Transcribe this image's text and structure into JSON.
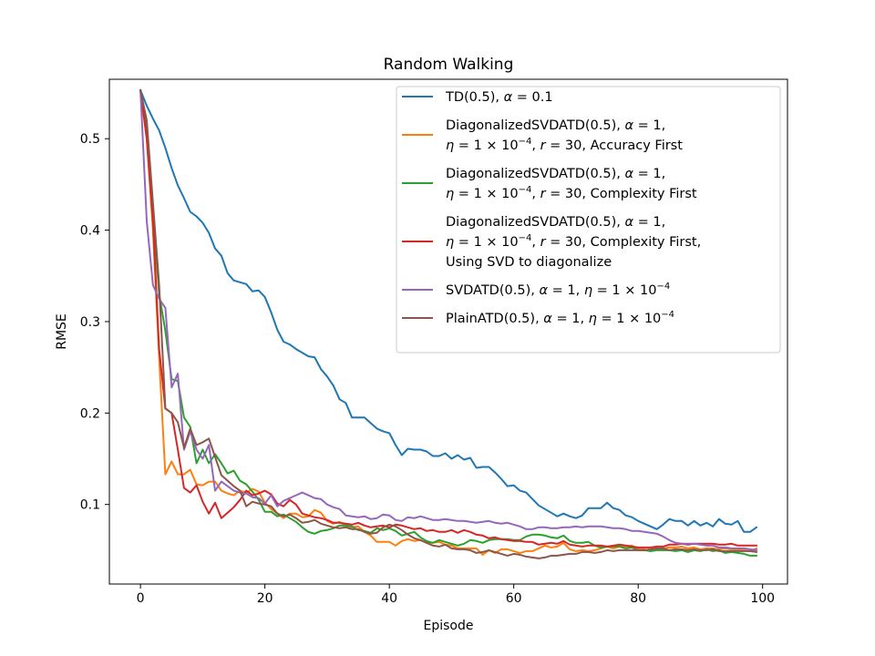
{
  "chart_data": {
    "type": "line",
    "title": "Random Walking",
    "xlabel": "Episode",
    "ylabel": "RMSE",
    "xlim": [
      -5,
      104
    ],
    "ylim": [
      0.013,
      0.565
    ],
    "xticks": [
      0,
      20,
      40,
      60,
      80,
      100
    ],
    "yticks": [
      0.1,
      0.2,
      0.3,
      0.4,
      0.5
    ],
    "grid": false,
    "legend_position": "top-right",
    "x": [
      0,
      1,
      2,
      3,
      4,
      5,
      6,
      7,
      8,
      9,
      10,
      11,
      12,
      13,
      14,
      15,
      16,
      17,
      18,
      19,
      20,
      21,
      22,
      23,
      24,
      25,
      26,
      27,
      28,
      29,
      30,
      31,
      32,
      33,
      34,
      35,
      36,
      37,
      38,
      39,
      40,
      41,
      42,
      43,
      44,
      45,
      46,
      47,
      48,
      49,
      50,
      51,
      52,
      53,
      54,
      55,
      56,
      57,
      58,
      59,
      60,
      61,
      62,
      63,
      64,
      65,
      66,
      67,
      68,
      69,
      70,
      71,
      72,
      73,
      74,
      75,
      76,
      77,
      78,
      79,
      80,
      81,
      82,
      83,
      84,
      85,
      86,
      87,
      88,
      89,
      90,
      91,
      92,
      93,
      94,
      95,
      96,
      97,
      98,
      99
    ],
    "series": [
      {
        "name": "TD(0.5), α = 0.1",
        "color": "#1f77b4",
        "values": [
          0.553,
          0.536,
          0.522,
          0.509,
          0.49,
          0.468,
          0.449,
          0.435,
          0.42,
          0.415,
          0.408,
          0.397,
          0.38,
          0.372,
          0.353,
          0.345,
          0.343,
          0.341,
          0.333,
          0.334,
          0.327,
          0.31,
          0.291,
          0.278,
          0.275,
          0.27,
          0.266,
          0.262,
          0.261,
          0.248,
          0.24,
          0.23,
          0.215,
          0.211,
          0.195,
          0.195,
          0.195,
          0.189,
          0.183,
          0.18,
          0.178,
          0.165,
          0.154,
          0.161,
          0.16,
          0.16,
          0.158,
          0.153,
          0.153,
          0.156,
          0.15,
          0.154,
          0.149,
          0.151,
          0.14,
          0.141,
          0.141,
          0.135,
          0.128,
          0.12,
          0.121,
          0.115,
          0.113,
          0.106,
          0.099,
          0.095,
          0.091,
          0.087,
          0.09,
          0.087,
          0.085,
          0.088,
          0.096,
          0.096,
          0.096,
          0.102,
          0.096,
          0.094,
          0.088,
          0.086,
          0.082,
          0.079,
          0.076,
          0.073,
          0.078,
          0.084,
          0.082,
          0.082,
          0.077,
          0.082,
          0.077,
          0.08,
          0.076,
          0.084,
          0.079,
          0.078,
          0.082,
          0.07,
          0.07,
          0.075
        ]
      },
      {
        "name": "DiagonalizedSVDATD(0.5), α = 1, η = 1 × 10⁻⁴, r = 30, Accuracy First",
        "color": "#ff7f0e",
        "values": [
          0.553,
          0.5,
          0.4,
          0.26,
          0.133,
          0.147,
          0.133,
          0.133,
          0.138,
          0.122,
          0.121,
          0.125,
          0.125,
          0.115,
          0.112,
          0.11,
          0.115,
          0.113,
          0.117,
          0.114,
          0.102,
          0.095,
          0.09,
          0.085,
          0.09,
          0.09,
          0.086,
          0.087,
          0.094,
          0.091,
          0.082,
          0.079,
          0.081,
          0.077,
          0.075,
          0.076,
          0.07,
          0.066,
          0.059,
          0.059,
          0.059,
          0.055,
          0.06,
          0.062,
          0.06,
          0.061,
          0.058,
          0.058,
          0.059,
          0.056,
          0.055,
          0.052,
          0.052,
          0.052,
          0.052,
          0.045,
          0.05,
          0.047,
          0.051,
          0.051,
          0.049,
          0.047,
          0.049,
          0.049,
          0.052,
          0.055,
          0.053,
          0.054,
          0.058,
          0.051,
          0.049,
          0.05,
          0.049,
          0.05,
          0.052,
          0.054,
          0.052,
          0.054,
          0.054,
          0.055,
          0.051,
          0.051,
          0.049,
          0.051,
          0.052,
          0.053,
          0.053,
          0.054,
          0.052,
          0.053,
          0.051,
          0.052,
          0.052,
          0.051,
          0.052,
          0.051,
          0.051,
          0.05,
          0.049,
          0.052
        ]
      },
      {
        "name": "DiagonalizedSVDATD(0.5), α = 1, η = 1 × 10⁻⁴, r = 30, Complexity First",
        "color": "#2ca02c",
        "values": [
          0.553,
          0.51,
          0.42,
          0.33,
          0.29,
          0.237,
          0.235,
          0.195,
          0.185,
          0.145,
          0.16,
          0.145,
          0.155,
          0.145,
          0.134,
          0.137,
          0.126,
          0.122,
          0.114,
          0.105,
          0.092,
          0.092,
          0.087,
          0.089,
          0.085,
          0.081,
          0.075,
          0.07,
          0.068,
          0.071,
          0.072,
          0.074,
          0.077,
          0.077,
          0.076,
          0.072,
          0.071,
          0.069,
          0.074,
          0.072,
          0.074,
          0.071,
          0.066,
          0.068,
          0.07,
          0.064,
          0.06,
          0.058,
          0.061,
          0.059,
          0.057,
          0.055,
          0.057,
          0.061,
          0.06,
          0.058,
          0.061,
          0.062,
          0.062,
          0.062,
          0.061,
          0.061,
          0.065,
          0.067,
          0.067,
          0.066,
          0.064,
          0.063,
          0.066,
          0.06,
          0.058,
          0.058,
          0.059,
          0.055,
          0.053,
          0.054,
          0.054,
          0.054,
          0.052,
          0.053,
          0.05,
          0.05,
          0.049,
          0.05,
          0.05,
          0.05,
          0.049,
          0.05,
          0.048,
          0.05,
          0.049,
          0.051,
          0.049,
          0.05,
          0.047,
          0.048,
          0.047,
          0.046,
          0.044,
          0.044
        ]
      },
      {
        "name": "DiagonalizedSVDATD(0.5), α = 1, η = 1 × 10⁻⁴, r = 30, Complexity First, Using SVD to diagonalize",
        "color": "#d62728",
        "values": [
          0.553,
          0.5,
          0.41,
          0.27,
          0.205,
          0.2,
          0.16,
          0.118,
          0.113,
          0.121,
          0.103,
          0.09,
          0.102,
          0.085,
          0.091,
          0.097,
          0.105,
          0.115,
          0.11,
          0.112,
          0.115,
          0.111,
          0.101,
          0.098,
          0.105,
          0.1,
          0.09,
          0.088,
          0.086,
          0.085,
          0.083,
          0.08,
          0.08,
          0.079,
          0.078,
          0.08,
          0.077,
          0.075,
          0.076,
          0.077,
          0.075,
          0.078,
          0.077,
          0.075,
          0.073,
          0.074,
          0.071,
          0.072,
          0.07,
          0.07,
          0.072,
          0.069,
          0.072,
          0.07,
          0.067,
          0.066,
          0.063,
          0.064,
          0.062,
          0.061,
          0.06,
          0.06,
          0.059,
          0.059,
          0.056,
          0.057,
          0.058,
          0.057,
          0.06,
          0.056,
          0.055,
          0.054,
          0.055,
          0.055,
          0.055,
          0.054,
          0.055,
          0.056,
          0.055,
          0.054,
          0.053,
          0.053,
          0.053,
          0.054,
          0.054,
          0.056,
          0.056,
          0.057,
          0.056,
          0.057,
          0.057,
          0.057,
          0.057,
          0.056,
          0.056,
          0.057,
          0.055,
          0.055,
          0.055,
          0.055
        ]
      },
      {
        "name": "SVDATD(0.5), α = 1, η = 1 × 10⁻⁴",
        "color": "#9467bd",
        "values": [
          0.553,
          0.41,
          0.34,
          0.325,
          0.315,
          0.228,
          0.243,
          0.16,
          0.18,
          0.16,
          0.15,
          0.165,
          0.115,
          0.125,
          0.12,
          0.115,
          0.113,
          0.112,
          0.108,
          0.107,
          0.101,
          0.11,
          0.098,
          0.104,
          0.107,
          0.11,
          0.113,
          0.11,
          0.107,
          0.106,
          0.1,
          0.097,
          0.095,
          0.088,
          0.087,
          0.086,
          0.087,
          0.084,
          0.085,
          0.089,
          0.088,
          0.083,
          0.082,
          0.086,
          0.085,
          0.087,
          0.085,
          0.083,
          0.083,
          0.084,
          0.083,
          0.082,
          0.082,
          0.081,
          0.08,
          0.081,
          0.082,
          0.08,
          0.079,
          0.08,
          0.078,
          0.076,
          0.073,
          0.073,
          0.075,
          0.075,
          0.074,
          0.074,
          0.075,
          0.075,
          0.076,
          0.075,
          0.076,
          0.076,
          0.076,
          0.075,
          0.074,
          0.074,
          0.073,
          0.071,
          0.071,
          0.07,
          0.069,
          0.068,
          0.065,
          0.061,
          0.058,
          0.057,
          0.057,
          0.057,
          0.056,
          0.055,
          0.055,
          0.053,
          0.053,
          0.052,
          0.052,
          0.052,
          0.051,
          0.05
        ]
      },
      {
        "name": "PlainATD(0.5), α = 1, η = 1 × 10⁻⁴",
        "color": "#8c564b",
        "values": [
          0.553,
          0.52,
          0.43,
          0.34,
          0.205,
          0.2,
          0.19,
          0.162,
          0.183,
          0.165,
          0.168,
          0.172,
          0.152,
          0.132,
          0.126,
          0.12,
          0.115,
          0.098,
          0.103,
          0.101,
          0.1,
          0.098,
          0.09,
          0.087,
          0.089,
          0.085,
          0.08,
          0.081,
          0.083,
          0.079,
          0.077,
          0.075,
          0.074,
          0.075,
          0.073,
          0.073,
          0.07,
          0.068,
          0.069,
          0.075,
          0.078,
          0.076,
          0.072,
          0.067,
          0.063,
          0.061,
          0.058,
          0.055,
          0.054,
          0.056,
          0.052,
          0.051,
          0.051,
          0.05,
          0.047,
          0.048,
          0.05,
          0.048,
          0.046,
          0.044,
          0.046,
          0.045,
          0.043,
          0.042,
          0.041,
          0.042,
          0.044,
          0.044,
          0.045,
          0.046,
          0.046,
          0.048,
          0.048,
          0.047,
          0.048,
          0.05,
          0.049,
          0.05,
          0.05,
          0.05,
          0.05,
          0.05,
          0.051,
          0.052,
          0.052,
          0.05,
          0.051,
          0.051,
          0.05,
          0.051,
          0.05,
          0.05,
          0.051,
          0.049,
          0.049,
          0.049,
          0.049,
          0.049,
          0.049,
          0.048
        ]
      }
    ]
  },
  "legend": {
    "entries": [
      {
        "lines": [
          [
            "TD(0.5), ",
            "α",
            " = 0.1"
          ]
        ]
      },
      {
        "lines": [
          [
            "DiagonalizedSVDATD(0.5), ",
            "α",
            " = 1,"
          ],
          [
            "η",
            " = 1 × 10",
            "−4",
            ", ",
            "r",
            " = 30, Accuracy First"
          ]
        ]
      },
      {
        "lines": [
          [
            "DiagonalizedSVDATD(0.5), ",
            "α",
            " = 1,"
          ],
          [
            "η",
            " = 1 × 10",
            "−4",
            ", ",
            "r",
            " = 30, Complexity First"
          ]
        ]
      },
      {
        "lines": [
          [
            "DiagonalizedSVDATD(0.5), ",
            "α",
            " = 1,"
          ],
          [
            "η",
            " = 1 × 10",
            "−4",
            ", ",
            "r",
            " = 30, Complexity First,"
          ],
          [
            "Using SVD to diagonalize"
          ]
        ]
      },
      {
        "lines": [
          [
            "SVDATD(0.5), ",
            "α",
            " = 1, ",
            "η",
            " = 1 × 10",
            "−4"
          ]
        ]
      },
      {
        "lines": [
          [
            "PlainATD(0.5), ",
            "α",
            " = 1, ",
            "η",
            " = 1 × 10",
            "−4"
          ]
        ]
      }
    ]
  }
}
